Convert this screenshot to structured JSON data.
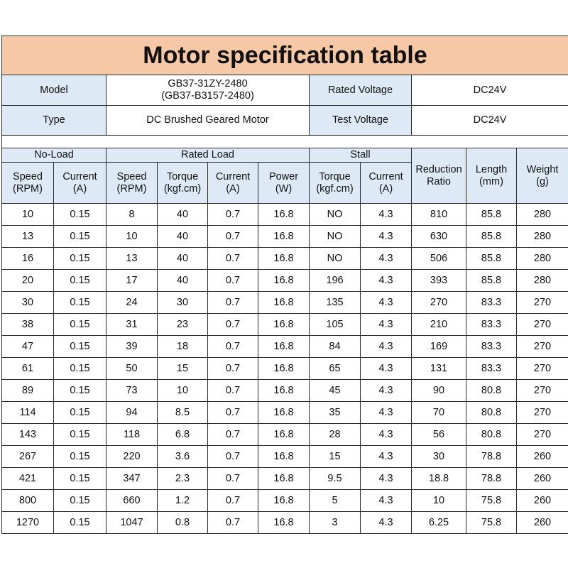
{
  "title": "Motor specification table",
  "info": {
    "model_label": "Model",
    "model_value_line1": "GB37-31ZY-2480",
    "model_value_line2": "(GB37-B3157-2480)",
    "rated_voltage_label": "Rated Voltage",
    "rated_voltage_value": "DC24V",
    "type_label": "Type",
    "type_value": "DC Brushed Geared Motor",
    "test_voltage_label": "Test Voltage",
    "test_voltage_value": "DC24V"
  },
  "groups": {
    "no_load": "No-Load",
    "rated_load": "Rated Load",
    "stall": "Stall"
  },
  "columns": [
    [
      "Speed",
      "(RPM)"
    ],
    [
      "Current",
      "(A)"
    ],
    [
      "Speed",
      "(RPM)"
    ],
    [
      "Torque",
      "(kgf.cm)"
    ],
    [
      "Current",
      "(A)"
    ],
    [
      "Power",
      "(W)"
    ],
    [
      "Torque",
      "(kgf.cm)"
    ],
    [
      "Current",
      "(A)"
    ],
    [
      "Reduction",
      "Ratio"
    ],
    [
      "Length",
      "(mm)"
    ],
    [
      "Weight",
      "(g)"
    ]
  ],
  "rows": [
    [
      "10",
      "0.15",
      "8",
      "40",
      "0.7",
      "16.8",
      "NO",
      "4.3",
      "810",
      "85.8",
      "280"
    ],
    [
      "13",
      "0.15",
      "10",
      "40",
      "0.7",
      "16.8",
      "NO",
      "4.3",
      "630",
      "85.8",
      "280"
    ],
    [
      "16",
      "0.15",
      "13",
      "40",
      "0.7",
      "16.8",
      "NO",
      "4.3",
      "506",
      "85.8",
      "280"
    ],
    [
      "20",
      "0.15",
      "17",
      "40",
      "0.7",
      "16.8",
      "196",
      "4.3",
      "393",
      "85.8",
      "280"
    ],
    [
      "30",
      "0.15",
      "24",
      "30",
      "0.7",
      "16.8",
      "135",
      "4.3",
      "270",
      "83.3",
      "270"
    ],
    [
      "38",
      "0.15",
      "31",
      "23",
      "0.7",
      "16.8",
      "105",
      "4.3",
      "210",
      "83.3",
      "270"
    ],
    [
      "47",
      "0.15",
      "39",
      "18",
      "0.7",
      "16.8",
      "84",
      "4.3",
      "169",
      "83.3",
      "270"
    ],
    [
      "61",
      "0.15",
      "50",
      "15",
      "0.7",
      "16.8",
      "65",
      "4.3",
      "131",
      "83.3",
      "270"
    ],
    [
      "89",
      "0.15",
      "73",
      "10",
      "0.7",
      "16.8",
      "45",
      "4.3",
      "90",
      "80.8",
      "270"
    ],
    [
      "114",
      "0.15",
      "94",
      "8.5",
      "0.7",
      "16.8",
      "35",
      "4.3",
      "70",
      "80.8",
      "270"
    ],
    [
      "143",
      "0.15",
      "118",
      "6.8",
      "0.7",
      "16.8",
      "28",
      "4.3",
      "56",
      "80.8",
      "270"
    ],
    [
      "267",
      "0.15",
      "220",
      "3.6",
      "0.7",
      "16.8",
      "15",
      "4.3",
      "30",
      "78.8",
      "260"
    ],
    [
      "421",
      "0.15",
      "347",
      "2.3",
      "0.7",
      "16.8",
      "9.5",
      "4.3",
      "18.8",
      "78.8",
      "260"
    ],
    [
      "800",
      "0.15",
      "660",
      "1.2",
      "0.7",
      "16.8",
      "5",
      "4.3",
      "10",
      "75.8",
      "260"
    ],
    [
      "1270",
      "0.15",
      "1047",
      "0.8",
      "0.7",
      "16.8",
      "3",
      "4.3",
      "6.25",
      "75.8",
      "260"
    ]
  ],
  "colors": {
    "title_bg": "#f7c8a6",
    "header_bg": "#dde9f4",
    "border": "#2a2a2a"
  }
}
